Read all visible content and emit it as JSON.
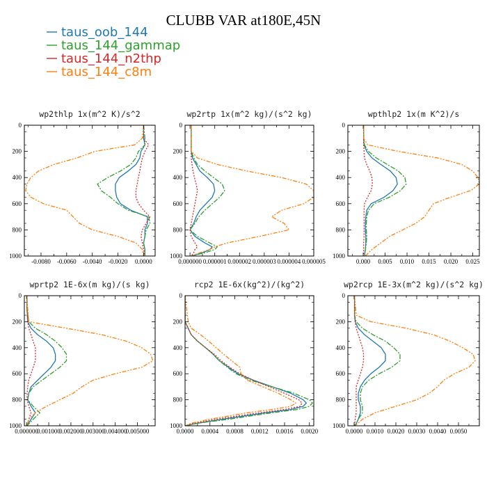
{
  "title": "CLUBB VAR at180E,45N",
  "legend": [
    {
      "name": "taus_oob_144",
      "color": "#1f77b4",
      "dash": ""
    },
    {
      "name": "taus_144_gammap",
      "color": "#2ca02c",
      "dash": "7,2,2,2"
    },
    {
      "name": "taus_144_n2thp",
      "color": "#d62728",
      "dash": "2,2"
    },
    {
      "name": "taus_144_c8m",
      "color": "#ff7f0e",
      "dash": "6,2,2,2,2,2"
    }
  ],
  "chart_data": [
    {
      "type": "line",
      "title": "wp2thlp  1x(m^2 K)/s^2",
      "xlim": [
        -0.0093,
        0.0009
      ],
      "ylim": [
        1000,
        0
      ],
      "xticks": [
        -0.008,
        -0.006,
        -0.004,
        -0.002,
        0.0
      ],
      "xtick_labels": [
        "-0.0080",
        "-0.0060",
        "-0.0040",
        "-0.0020",
        "0.0000"
      ],
      "yticks": [
        0,
        200,
        400,
        600,
        800,
        1000
      ],
      "ytick_labels": [
        "0",
        "200",
        "400",
        "600",
        "800",
        "1000"
      ],
      "y": [
        0,
        100,
        150,
        200,
        250,
        300,
        350,
        400,
        450,
        500,
        550,
        600,
        650,
        700,
        750,
        800,
        850,
        900,
        950,
        1000
      ],
      "series": [
        {
          "name": "taus_oob_144",
          "values": [
            0,
            0,
            0.0001,
            -0.0002,
            -0.0003,
            -0.0006,
            -0.0012,
            -0.0019,
            -0.0022,
            -0.0022,
            -0.0021,
            -0.0018,
            -0.001,
            0.0003,
            0.0003,
            0.0001,
            0.0001,
            0.0,
            0.0001,
            0.0001
          ]
        },
        {
          "name": "taus_144_gammap",
          "values": [
            0,
            0.0001,
            0.0001,
            -0.0004,
            -0.0006,
            -0.001,
            -0.0018,
            -0.0028,
            -0.0036,
            -0.0033,
            -0.0026,
            -0.002,
            -0.0012,
            0.0004,
            0.0005,
            0.0002,
            0.0001,
            0.0,
            0.0001,
            0.0001
          ]
        },
        {
          "name": "taus_144_n2thp",
          "values": [
            0,
            0,
            0.0004,
            0.0001,
            -0.0001,
            -0.0002,
            -0.0003,
            -0.0004,
            -0.0005,
            -0.0006,
            -0.0006,
            -0.0004,
            0.0,
            0.0005,
            0.0002,
            -0.0001,
            -0.0002,
            -0.0001,
            0.0,
            0.0001
          ]
        },
        {
          "name": "taus_144_c8m",
          "values": [
            0,
            -0.0001,
            -0.0007,
            -0.0038,
            -0.0052,
            -0.007,
            -0.0082,
            -0.0088,
            -0.0091,
            -0.0092,
            -0.0088,
            -0.0078,
            -0.006,
            -0.0055,
            -0.005,
            -0.004,
            -0.002,
            -0.0006,
            -0.0001,
            0.0
          ]
        }
      ]
    },
    {
      "type": "line",
      "title": "wp2rtp  1x(m^2 kg)/(s^2 kg)",
      "xlim": [
        -2e-07,
        5e-06
      ],
      "ylim": [
        1000,
        0
      ],
      "xticks": [
        0.0,
        1e-06,
        2e-06,
        3e-06,
        4e-06,
        5e-06
      ],
      "xtick_labels": [
        "0.000000",
        "0.000001",
        "0.000002",
        "0.000003",
        "0.000004",
        "0.000005"
      ],
      "yticks": [
        0,
        200,
        400,
        600,
        800,
        1000
      ],
      "ytick_labels": [
        "0",
        "200",
        "400",
        "600",
        "800",
        "1000"
      ],
      "y": [
        0,
        100,
        200,
        250,
        300,
        350,
        400,
        450,
        500,
        550,
        600,
        650,
        700,
        750,
        800,
        850,
        900,
        930,
        950,
        975,
        1000
      ],
      "series": [
        {
          "name": "taus_oob_144",
          "values": [
            5e-08,
            5e-08,
            5e-08,
            1e-07,
            2.5e-07,
            4e-07,
            7e-07,
            9.5e-07,
            1e-06,
            9e-07,
            6.5e-07,
            4e-07,
            2.5e-07,
            1.5e-07,
            0.0,
            2e-07,
            6e-07,
            9e-07,
            8e-07,
            5e-07,
            5e-08
          ]
        },
        {
          "name": "taus_144_gammap",
          "values": [
            5e-08,
            5e-08,
            5e-08,
            1.5e-07,
            3e-07,
            6e-07,
            9.5e-07,
            1.3e-06,
            1.4e-06,
            1.2e-06,
            9e-07,
            6e-07,
            3.5e-07,
            2e-07,
            0.0,
            3e-07,
            8e-07,
            1.1e-06,
            1e-06,
            6e-07,
            5e-08
          ]
        },
        {
          "name": "taus_144_n2thp",
          "values": [
            5e-08,
            5e-08,
            5e-08,
            5e-08,
            8e-08,
            1.2e-07,
            1.8e-07,
            2.5e-07,
            3e-07,
            2.5e-07,
            2e-07,
            1.5e-07,
            1e-07,
            5e-08,
            0.0,
            5e-08,
            2e-07,
            3e-07,
            2e-07,
            1.5e-07,
            5e-08
          ]
        },
        {
          "name": "taus_144_c8m",
          "values": [
            5e-08,
            5e-08,
            5e-08,
            3e-07,
            1.1e-06,
            2.3e-06,
            3.7e-06,
            4.7e-06,
            5e-06,
            5e-06,
            4.6e-06,
            3.7e-06,
            3.3e-06,
            3.8e-06,
            4e-06,
            2.8e-06,
            1.5e-06,
            1e-06,
            8e-07,
            4e-07,
            5e-08
          ]
        }
      ]
    },
    {
      "type": "line",
      "title": "wpthlp2  1x(m K^2)/s",
      "xlim": [
        -0.0035,
        0.0265
      ],
      "ylim": [
        1000,
        0
      ],
      "xticks": [
        0.0,
        0.005,
        0.01,
        0.015,
        0.02,
        0.025
      ],
      "xtick_labels": [
        "0.000",
        "0.005",
        "0.010",
        "0.015",
        "0.020",
        "0.025"
      ],
      "yticks": [
        0,
        200,
        400,
        600,
        800,
        1000
      ],
      "ytick_labels": [
        "0",
        "200",
        "400",
        "600",
        "800",
        "1000"
      ],
      "y": [
        0,
        100,
        150,
        200,
        250,
        300,
        350,
        400,
        450,
        500,
        550,
        600,
        650,
        700,
        750,
        800,
        850,
        900,
        950,
        1000
      ],
      "series": [
        {
          "name": "taus_oob_144",
          "values": [
            0.0001,
            0.0001,
            0.0002,
            0.0008,
            0.002,
            0.004,
            0.0062,
            0.0075,
            0.0078,
            0.0068,
            0.0048,
            0.0018,
            0.0008,
            0.0006,
            0.0005,
            0.0005,
            0.0006,
            0.0006,
            0.0005,
            0.0003
          ]
        },
        {
          "name": "taus_144_gammap",
          "values": [
            0.0001,
            0.0001,
            0.0003,
            0.0012,
            0.003,
            0.0055,
            0.008,
            0.0095,
            0.0098,
            0.0085,
            0.006,
            0.0025,
            0.0012,
            0.0008,
            0.0007,
            0.0007,
            0.0008,
            0.0007,
            0.0005,
            0.0003
          ]
        },
        {
          "name": "taus_144_n2thp",
          "values": [
            0.0001,
            0.0001,
            0.0001,
            0.0002,
            0.0003,
            0.0008,
            0.0015,
            0.002,
            0.0021,
            0.0018,
            0.001,
            0.0003,
            0.0002,
            0.0002,
            0.0002,
            0.0002,
            0.0002,
            0.0001,
            0.0001,
            0.0001
          ]
        },
        {
          "name": "taus_144_c8m",
          "values": [
            0.0001,
            0.0001,
            0.001,
            0.008,
            0.017,
            0.0225,
            0.025,
            0.0262,
            0.0265,
            0.0245,
            0.02,
            0.016,
            0.015,
            0.014,
            0.012,
            0.009,
            0.006,
            0.004,
            0.002,
            0.0005
          ]
        }
      ]
    },
    {
      "type": "line",
      "title": "wprtp2  1E-6x(m kg)/(s kg)",
      "xlim": [
        -0.0001,
        0.0058
      ],
      "ylim": [
        1000,
        0
      ],
      "xticks": [
        0.0,
        0.001,
        0.002,
        0.003,
        0.004,
        0.005
      ],
      "xtick_labels": [
        "0.000000",
        "0.001000",
        "0.002000",
        "0.003000",
        "0.004000",
        "0.005000"
      ],
      "yticks": [
        0,
        200,
        400,
        600,
        800,
        1000
      ],
      "ytick_labels": [
        "0",
        "200",
        "400",
        "600",
        "800",
        "1000"
      ],
      "y": [
        0,
        100,
        200,
        250,
        300,
        350,
        400,
        450,
        500,
        550,
        600,
        650,
        700,
        750,
        800,
        850,
        900,
        950,
        1000
      ],
      "series": [
        {
          "name": "taus_oob_144",
          "values": [
            2e-05,
            2e-05,
            5e-05,
            0.0002,
            0.0005,
            0.0009,
            0.0012,
            0.0013,
            0.0013,
            0.0011,
            0.0008,
            0.0005,
            0.0002,
            0.0001,
            5e-05,
            0.0002,
            0.0004,
            0.0002,
            2e-05
          ]
        },
        {
          "name": "taus_144_gammap",
          "values": [
            2e-05,
            2e-05,
            0.0001,
            0.0004,
            0.0009,
            0.0013,
            0.0016,
            0.0018,
            0.0018,
            0.0015,
            0.0011,
            0.0007,
            0.0003,
            0.0001,
            5e-05,
            0.0003,
            0.0006,
            0.0003,
            2e-05
          ]
        },
        {
          "name": "taus_144_n2thp",
          "values": [
            2e-05,
            2e-05,
            5e-05,
            0.0001,
            0.0002,
            0.0003,
            0.0004,
            0.0004,
            0.0004,
            0.0003,
            0.0002,
            0.0001,
            5e-05,
            3e-05,
            2e-05,
            0.0001,
            0.0002,
            0.0001,
            2e-05
          ]
        },
        {
          "name": "taus_144_c8m",
          "values": [
            2e-05,
            5e-05,
            0.0001,
            0.0018,
            0.0034,
            0.0045,
            0.0052,
            0.0056,
            0.0057,
            0.0052,
            0.004,
            0.003,
            0.0025,
            0.0021,
            0.0015,
            0.0009,
            0.0004,
            0.0001,
            2e-05
          ]
        }
      ]
    },
    {
      "type": "line",
      "title": "rcp2  1E-6x(kg^2)/(kg^2)",
      "xlim": [
        0.0,
        0.00207
      ],
      "ylim": [
        1000,
        0
      ],
      "xticks": [
        0.0,
        0.0004,
        0.0008,
        0.0012,
        0.0016,
        0.002
      ],
      "xtick_labels": [
        "0.0000",
        "0.0004",
        "0.0008",
        "0.0012",
        "0.0016",
        "0.0020"
      ],
      "yticks": [
        0,
        200,
        400,
        600,
        800,
        1000
      ],
      "ytick_labels": [
        "0",
        "200",
        "400",
        "600",
        "800",
        "1000"
      ],
      "y": [
        0,
        200,
        250,
        300,
        350,
        400,
        450,
        500,
        550,
        600,
        650,
        700,
        750,
        800,
        825,
        850,
        875,
        900,
        950,
        980,
        1000
      ],
      "series": [
        {
          "name": "taus_oob_144",
          "values": [
            0.0,
            0.0,
            5e-05,
            0.0001,
            0.0002,
            0.00033,
            0.00045,
            0.00055,
            0.0007,
            0.00085,
            0.0011,
            0.0014,
            0.0017,
            0.0019,
            0.00195,
            0.0019,
            0.0017,
            0.0013,
            0.0006,
            0.0002,
            0.0
          ]
        },
        {
          "name": "taus_144_gammap",
          "values": [
            0.0,
            0.0,
            5e-05,
            0.0001,
            0.0002,
            0.00033,
            0.00045,
            0.00055,
            0.00068,
            0.00082,
            0.00105,
            0.0014,
            0.00175,
            0.002,
            0.00205,
            0.002,
            0.0018,
            0.0014,
            0.0007,
            0.0002,
            0.0
          ]
        },
        {
          "name": "taus_144_n2thp",
          "values": [
            0.0,
            0.0,
            5e-05,
            0.0001,
            0.0002,
            0.00033,
            0.00047,
            0.00058,
            0.00072,
            0.00088,
            0.0011,
            0.00135,
            0.0016,
            0.00183,
            0.00188,
            0.00185,
            0.0016,
            0.0012,
            0.0005,
            0.00015,
            0.0
          ]
        },
        {
          "name": "taus_144_c8m",
          "values": [
            0.0,
            5e-05,
            0.0001,
            0.00025,
            0.00038,
            0.0005,
            0.00062,
            0.00075,
            0.00088,
            0.0009,
            0.001,
            0.00125,
            0.0015,
            0.0017,
            0.00178,
            0.0017,
            0.0014,
            0.001,
            0.0004,
            0.0001,
            0.0
          ]
        }
      ]
    },
    {
      "type": "line",
      "title": "wp2rcp  1E-3x(m^2 kg)/(s^2 kg)",
      "xlim": [
        -0.0003,
        0.006
      ],
      "ylim": [
        1000,
        0
      ],
      "xticks": [
        0.0,
        0.001,
        0.002,
        0.003,
        0.004,
        0.005
      ],
      "xtick_labels": [
        "0.0000",
        "0.0010",
        "0.0020",
        "0.0030",
        "0.0040",
        "0.0050"
      ],
      "yticks": [
        0,
        200,
        400,
        600,
        800,
        1000
      ],
      "ytick_labels": [
        "0",
        "200",
        "400",
        "600",
        "800",
        "1000"
      ],
      "y": [
        0,
        150,
        200,
        250,
        300,
        350,
        400,
        450,
        500,
        550,
        600,
        650,
        700,
        750,
        800,
        850,
        900,
        950,
        1000
      ],
      "series": [
        {
          "name": "taus_oob_144",
          "values": [
            2e-05,
            2e-05,
            5e-05,
            0.0002,
            0.0005,
            0.0009,
            0.0013,
            0.0015,
            0.0015,
            0.0012,
            0.0008,
            0.0005,
            0.0003,
            0.0002,
            0.0002,
            0.0003,
            0.0003,
            0.0002,
            5e-05
          ]
        },
        {
          "name": "taus_144_gammap",
          "values": [
            2e-05,
            2e-05,
            0.0001,
            0.0004,
            0.0009,
            0.0015,
            0.0019,
            0.0022,
            0.0022,
            0.0018,
            0.0012,
            0.0007,
            0.0004,
            0.0003,
            0.0003,
            0.0004,
            0.0004,
            0.0002,
            5e-05
          ]
        },
        {
          "name": "taus_144_n2thp",
          "values": [
            2e-05,
            2e-05,
            5e-05,
            0.0001,
            0.0002,
            0.0003,
            0.0004,
            0.00045,
            0.00045,
            0.0004,
            0.0003,
            0.0002,
            0.0001,
            0.0001,
            0.0001,
            0.0001,
            0.0001,
            5e-05,
            2e-05
          ]
        },
        {
          "name": "taus_144_c8m",
          "values": [
            2e-05,
            0.0001,
            0.0008,
            0.0025,
            0.0038,
            0.0046,
            0.0052,
            0.0057,
            0.0058,
            0.0055,
            0.0048,
            0.0043,
            0.004,
            0.0036,
            0.003,
            0.002,
            0.001,
            0.0004,
            5e-05
          ]
        }
      ]
    }
  ]
}
